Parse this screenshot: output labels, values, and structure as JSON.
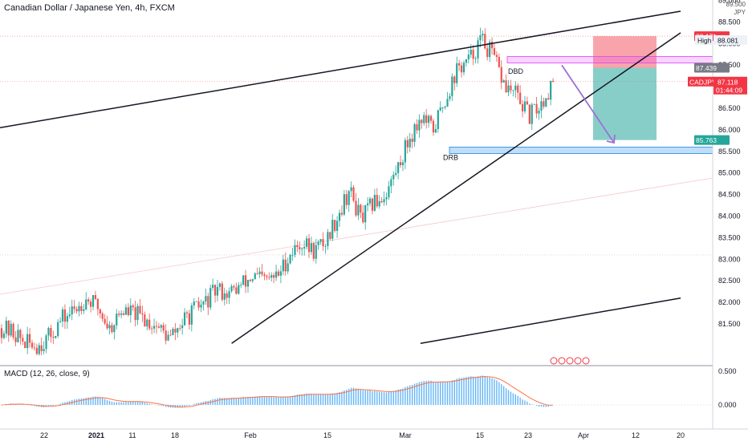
{
  "header": {
    "title": "Canadian Dollar / Japanese Yen, 4h, FXCM",
    "axis_label_top": "89.500",
    "unit": "JPY"
  },
  "macd": {
    "title": "MACD (12, 26, close, 9)"
  },
  "price_axis": {
    "ticks": [
      "89.000",
      "88.500",
      "88.000",
      "87.500",
      "87.000",
      "86.500",
      "86.000",
      "85.500",
      "85.000",
      "84.500",
      "84.000",
      "83.500",
      "83.000",
      "82.500",
      "82.000",
      "81.500"
    ]
  },
  "macd_axis": {
    "ticks": [
      "0.500",
      "0.000"
    ]
  },
  "time_axis": {
    "ticks": [
      "22",
      "2021",
      "11",
      "18",
      "Feb",
      "15",
      "Mar",
      "15",
      "23",
      "Apr",
      "12",
      "20"
    ]
  },
  "badges": [
    {
      "name": "stop-level-badge",
      "text": "88.171",
      "value": 88.171,
      "color": "#f23645"
    },
    {
      "name": "entry-level-badge",
      "text": "87.439",
      "value": 87.439,
      "color": "#787b86"
    },
    {
      "name": "symbol-badge",
      "text": "CADJPY",
      "value": 87.118,
      "color": "#f23645"
    },
    {
      "name": "last-price-badge",
      "text": "87.118",
      "value": 87.118,
      "color": "#f23645"
    },
    {
      "name": "countdown-badge",
      "text": "01:44:09",
      "value": 87.118,
      "color": "#f23645"
    },
    {
      "name": "target-level-badge",
      "text": "85.763",
      "value": 85.763,
      "color": "#26a69a"
    }
  ],
  "high_label": {
    "label": "High",
    "value_text": "88.081",
    "value": 88.081
  },
  "annotations": {
    "dbd": "DBD",
    "drb": "DRB"
  },
  "chart_data": {
    "type": "candlestick",
    "title": "Canadian Dollar / Japanese Yen, 4h, FXCM",
    "y_unit": "JPY",
    "ylim": [
      81.0,
      89.6
    ],
    "close_path": [
      [
        81.4,
        81.6
      ],
      [
        81.3,
        81.4
      ],
      [
        81.05,
        81.2
      ],
      [
        81.0,
        81.1
      ],
      [
        81.2,
        81.3
      ],
      [
        81.6,
        81.5
      ],
      [
        81.8,
        81.7
      ],
      [
        82.1,
        81.9
      ],
      [
        81.9,
        81.6
      ],
      [
        81.4,
        81.6
      ],
      [
        81.8,
        81.9
      ],
      [
        81.75,
        81.7
      ],
      [
        81.6,
        81.4
      ],
      [
        81.45,
        81.3
      ],
      [
        81.15,
        81.1
      ],
      [
        81.5,
        81.6
      ],
      [
        81.8,
        81.9
      ],
      [
        82.0,
        82.1
      ],
      [
        82.3,
        82.4
      ],
      [
        82.2,
        82.2
      ],
      [
        82.4,
        82.6
      ],
      [
        82.6,
        82.5
      ],
      [
        82.5,
        82.4
      ],
      [
        82.6,
        82.6
      ],
      [
        83.1,
        83.3
      ],
      [
        83.4,
        83.5
      ],
      [
        83.2,
        83.2
      ],
      [
        83.4,
        83.5
      ],
      [
        84.0,
        84.3
      ],
      [
        84.6,
        84.9
      ],
      [
        83.9,
        83.8
      ],
      [
        84.3,
        84.5
      ],
      [
        84.5,
        84.8
      ],
      [
        85.1,
        85.3
      ],
      [
        85.8,
        85.9
      ],
      [
        86.3,
        86.4
      ],
      [
        86.0,
        85.9
      ],
      [
        86.7,
        86.9
      ],
      [
        87.4,
        87.6
      ],
      [
        87.6,
        87.7
      ],
      [
        88.1,
        88.2
      ],
      [
        87.7,
        87.6
      ],
      [
        87.0,
        86.9
      ],
      [
        86.8,
        86.6
      ],
      [
        86.3,
        86.2
      ],
      [
        86.6,
        86.5
      ],
      [
        87.1,
        87.1
      ]
    ],
    "x_ticks": [
      "22",
      "2021",
      "11",
      "18",
      "Feb",
      "15",
      "Mar",
      "15",
      "23",
      "Apr",
      "12",
      "20"
    ],
    "y_ticks": [
      89.0,
      88.5,
      88.0,
      87.5,
      87.0,
      86.5,
      86.0,
      85.5,
      85.0,
      84.5,
      84.0,
      83.5,
      83.0,
      82.5,
      82.0,
      81.5
    ],
    "last_price": 87.118,
    "period_high": 88.081,
    "zones": [
      {
        "label": "DBD",
        "from": 87.55,
        "to": 87.7,
        "color": "#e040fb"
      },
      {
        "label": "DRB",
        "from": 85.45,
        "to": 85.6,
        "color": "#1e88e5"
      }
    ],
    "position": {
      "type": "short",
      "entry": 87.439,
      "stop": 88.171,
      "target": 85.763
    },
    "trend_lines": [
      {
        "name": "upper-channel",
        "from": [
          0.0,
          86.05
        ],
        "to": [
          0.955,
          88.75
        ]
      },
      {
        "name": "rising-support",
        "from": [
          0.325,
          81.05
        ],
        "to": [
          0.955,
          88.25
        ]
      },
      {
        "name": "lower-channel",
        "from": [
          0.59,
          81.05
        ],
        "to": [
          0.955,
          82.1
        ]
      }
    ],
    "projection_arrow": {
      "from": 87.5,
      "to": 85.7
    },
    "macd": {
      "title": "MACD (12, 26, close, 9)",
      "ylim": [
        -0.45,
        0.75
      ],
      "y_ticks": [
        0.5,
        0.0
      ]
    }
  }
}
